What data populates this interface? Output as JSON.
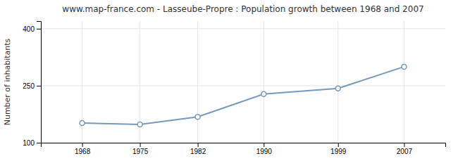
{
  "chart_data": {
    "type": "line",
    "title": "www.map-france.com - Lasseube-Propre : Population growth between 1968 and 2007",
    "ylabel": "Number of inhabitants",
    "x": [
      1968,
      1975,
      1982,
      1990,
      1999,
      2007
    ],
    "values": [
      152,
      148,
      168,
      228,
      243,
      300
    ],
    "color": "#7799bb",
    "marker": "circle",
    "xlim": [
      1963,
      2012
    ],
    "xticks": [
      1968,
      1975,
      1982,
      1990,
      1999,
      2007
    ],
    "ylim": [
      100,
      420
    ],
    "yticks": [
      100,
      250,
      400
    ],
    "grid": true
  }
}
